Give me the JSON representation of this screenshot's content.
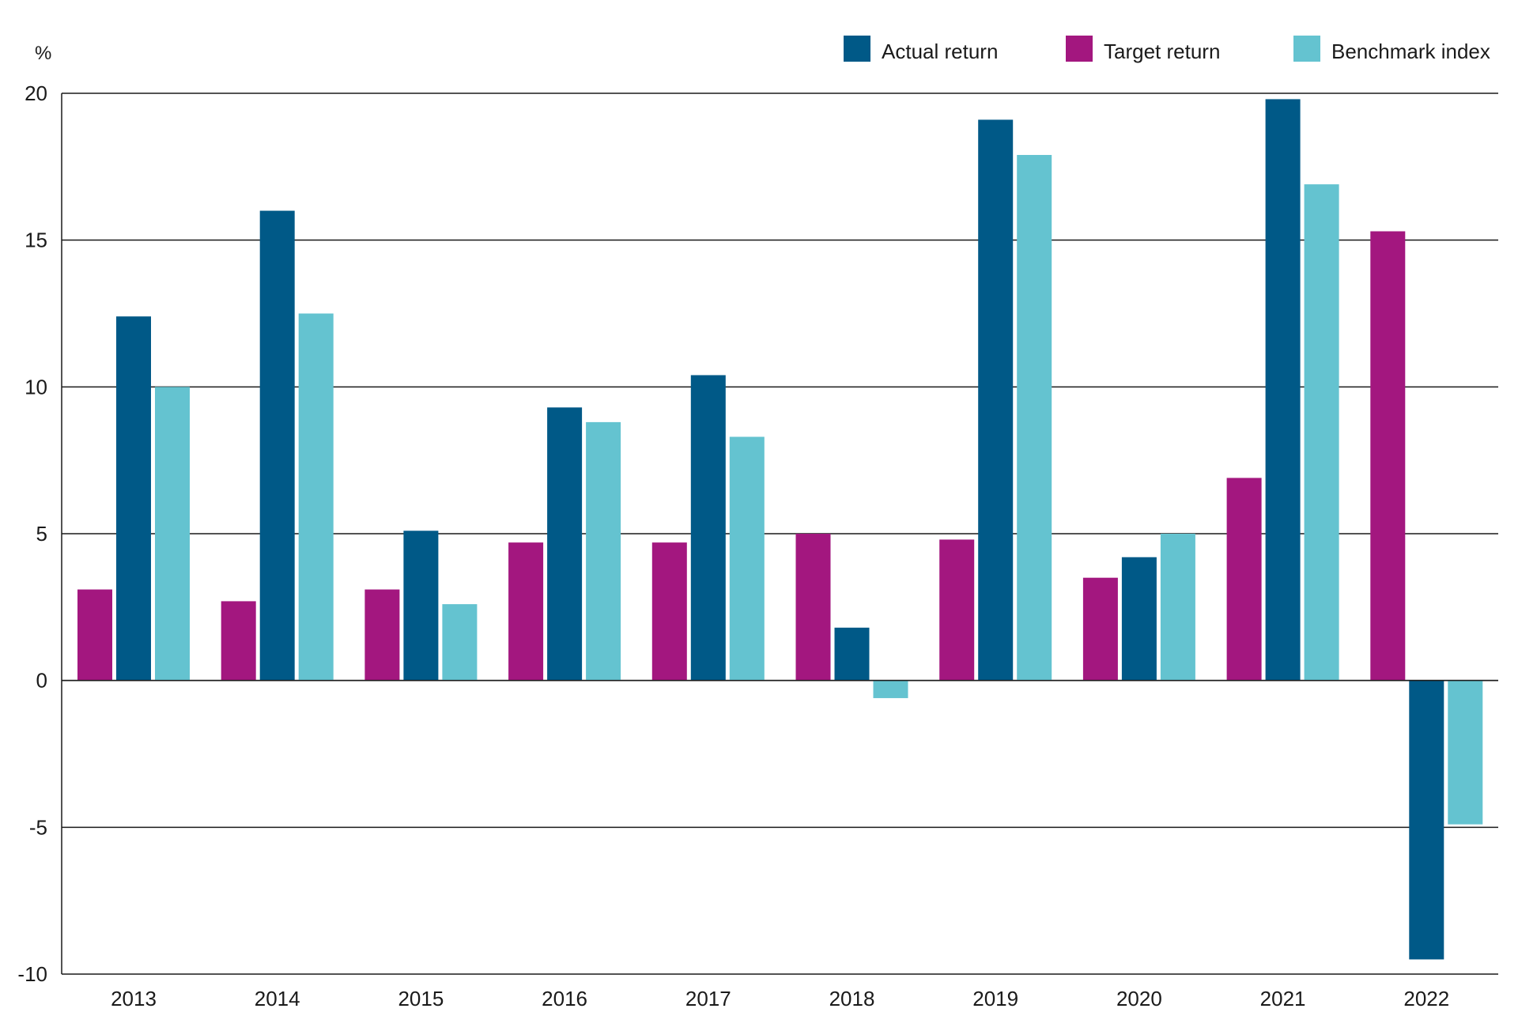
{
  "chart_data": {
    "type": "bar",
    "ylabel": "%",
    "ylim": [
      -10,
      20
    ],
    "yticks": [
      20,
      15,
      10,
      5,
      0,
      -5,
      -10
    ],
    "grid": true,
    "legend_position": "top-right",
    "categories": [
      "2013",
      "2014",
      "2015",
      "2016",
      "2017",
      "2018",
      "2019",
      "2020",
      "2021",
      "2022"
    ],
    "series": [
      {
        "name": "Target return",
        "color": "#a3177f",
        "values": [
          3.1,
          2.7,
          3.1,
          4.7,
          4.7,
          5.0,
          4.8,
          3.5,
          6.9,
          15.3
        ]
      },
      {
        "name": "Actual return",
        "color": "#005987",
        "values": [
          12.4,
          16.0,
          5.1,
          9.3,
          10.4,
          1.8,
          19.1,
          4.2,
          19.8,
          -9.5
        ]
      },
      {
        "name": "Benchmark index",
        "color": "#64c3d0",
        "values": [
          10.0,
          12.5,
          2.6,
          8.8,
          8.3,
          -0.6,
          17.9,
          5.0,
          16.9,
          -4.9
        ]
      }
    ],
    "legend_order": [
      "Actual return",
      "Target return",
      "Benchmark index"
    ]
  }
}
